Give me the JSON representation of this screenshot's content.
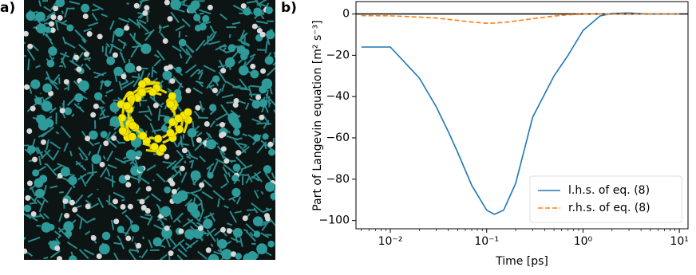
{
  "panel_labels": [
    "a)",
    "b)"
  ],
  "chart_data": {
    "type": "line",
    "xlabel": "Time [ps]",
    "ylabel": "Part of Langevin equation [m² s⁻³]",
    "xscale": "log",
    "x": [
      0.005,
      0.01,
      0.02,
      0.03,
      0.04,
      0.05,
      0.07,
      0.1,
      0.12,
      0.15,
      0.2,
      0.3,
      0.5,
      0.7,
      1,
      1.5,
      2,
      3,
      5,
      10
    ],
    "series": [
      {
        "name": "l.h.s. of eq. (8)",
        "color": "#1f77b4",
        "dash": "solid",
        "values": [
          -16,
          -16,
          -31,
          -45,
          -57,
          -67,
          -83,
          -95,
          -97,
          -95,
          -82,
          -50,
          -30,
          -20,
          -8,
          -1,
          0.3,
          0.5,
          0,
          0
        ]
      },
      {
        "name": "r.h.s. of eq. (8)",
        "color": "#ff7f0e",
        "dash": "dashed",
        "values": [
          -0.8,
          -0.9,
          -1.5,
          -2,
          -2.6,
          -3.1,
          -3.9,
          -4.5,
          -4.4,
          -4.1,
          -3.4,
          -2.3,
          -1,
          -0.4,
          -0.1,
          0,
          0,
          0,
          0,
          0
        ]
      }
    ],
    "hline": 0,
    "xlim": [
      0.0044,
      12.3
    ],
    "ylim": [
      -104,
      6
    ],
    "xticks": [
      {
        "value": 0.01,
        "label": "10⁻²"
      },
      {
        "value": 0.1,
        "label": "10⁻¹"
      },
      {
        "value": 1,
        "label": "10⁰"
      },
      {
        "value": 10,
        "label": "10¹"
      }
    ],
    "yticks": [
      {
        "value": -100,
        "label": "−100"
      },
      {
        "value": -80,
        "label": "−80"
      },
      {
        "value": -60,
        "label": "−60"
      },
      {
        "value": -40,
        "label": "−40"
      },
      {
        "value": -20,
        "label": "−20"
      },
      0
    ],
    "legend": "lower right"
  }
}
